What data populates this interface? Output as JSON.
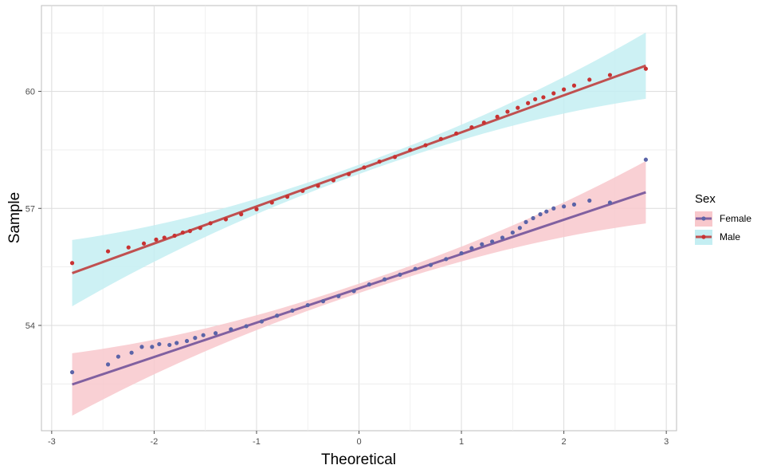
{
  "chart_data": {
    "type": "scatter",
    "subtype": "qq-plot",
    "title": "",
    "xlabel": "Theoretical",
    "ylabel": "Sample",
    "xlim": [
      -3.1,
      3.1
    ],
    "ylim": [
      51.3,
      62.2
    ],
    "x_ticks": [
      -3,
      -2,
      -1,
      0,
      1,
      2,
      3
    ],
    "y_ticks": [
      54,
      57,
      60
    ],
    "grid": true,
    "legend": {
      "title": "Sex",
      "position": "right",
      "entries": [
        "Female",
        "Male"
      ]
    },
    "series": [
      {
        "name": "Female",
        "point_color": "#5b64a8",
        "line_color": "#8060a0",
        "band_color": "#f8c8cc",
        "line": {
          "slope": 0.88,
          "intercept": 54.95,
          "x_range": [
            -2.8,
            2.8
          ]
        },
        "band_half_width": {
          "at_center": 0.12,
          "at_extreme": 0.8
        },
        "points": [
          [
            -2.8,
            52.8
          ],
          [
            -2.45,
            53.0
          ],
          [
            -2.35,
            53.2
          ],
          [
            -2.22,
            53.3
          ],
          [
            -2.12,
            53.45
          ],
          [
            -2.02,
            53.45
          ],
          [
            -1.95,
            53.52
          ],
          [
            -1.85,
            53.5
          ],
          [
            -1.78,
            53.55
          ],
          [
            -1.68,
            53.6
          ],
          [
            -1.6,
            53.68
          ],
          [
            -1.52,
            53.75
          ],
          [
            -1.4,
            53.8
          ],
          [
            -1.25,
            53.9
          ],
          [
            -1.1,
            53.98
          ],
          [
            -0.95,
            54.1
          ],
          [
            -0.8,
            54.25
          ],
          [
            -0.65,
            54.38
          ],
          [
            -0.5,
            54.52
          ],
          [
            -0.35,
            54.62
          ],
          [
            -0.2,
            54.75
          ],
          [
            -0.05,
            54.88
          ],
          [
            0.1,
            55.05
          ],
          [
            0.25,
            55.18
          ],
          [
            0.4,
            55.3
          ],
          [
            0.55,
            55.45
          ],
          [
            0.7,
            55.55
          ],
          [
            0.85,
            55.7
          ],
          [
            1.0,
            55.85
          ],
          [
            1.1,
            55.98
          ],
          [
            1.2,
            56.08
          ],
          [
            1.3,
            56.15
          ],
          [
            1.4,
            56.25
          ],
          [
            1.5,
            56.38
          ],
          [
            1.57,
            56.5
          ],
          [
            1.63,
            56.65
          ],
          [
            1.7,
            56.75
          ],
          [
            1.77,
            56.85
          ],
          [
            1.83,
            56.92
          ],
          [
            1.9,
            57.0
          ],
          [
            2.0,
            57.05
          ],
          [
            2.1,
            57.1
          ],
          [
            2.25,
            57.2
          ],
          [
            2.45,
            57.15
          ],
          [
            2.8,
            58.25
          ]
        ]
      },
      {
        "name": "Male",
        "point_color": "#c83232",
        "line_color": "#c05050",
        "band_color": "#c4eef2",
        "line": {
          "slope": 0.95,
          "intercept": 58.0,
          "x_range": [
            -2.8,
            2.8
          ]
        },
        "band_half_width": {
          "at_center": 0.12,
          "at_extreme": 0.85
        },
        "points": [
          [
            -2.8,
            55.6
          ],
          [
            -2.45,
            55.9
          ],
          [
            -2.25,
            56.0
          ],
          [
            -2.1,
            56.1
          ],
          [
            -1.98,
            56.2
          ],
          [
            -1.9,
            56.25
          ],
          [
            -1.8,
            56.3
          ],
          [
            -1.72,
            56.38
          ],
          [
            -1.65,
            56.42
          ],
          [
            -1.55,
            56.5
          ],
          [
            -1.45,
            56.62
          ],
          [
            -1.3,
            56.72
          ],
          [
            -1.15,
            56.85
          ],
          [
            -1.0,
            56.98
          ],
          [
            -0.85,
            57.15
          ],
          [
            -0.7,
            57.3
          ],
          [
            -0.55,
            57.45
          ],
          [
            -0.4,
            57.58
          ],
          [
            -0.25,
            57.72
          ],
          [
            -0.1,
            57.88
          ],
          [
            0.05,
            58.05
          ],
          [
            0.2,
            58.2
          ],
          [
            0.35,
            58.32
          ],
          [
            0.5,
            58.5
          ],
          [
            0.65,
            58.62
          ],
          [
            0.8,
            58.78
          ],
          [
            0.95,
            58.92
          ],
          [
            1.1,
            59.08
          ],
          [
            1.22,
            59.2
          ],
          [
            1.35,
            59.35
          ],
          [
            1.45,
            59.48
          ],
          [
            1.55,
            59.58
          ],
          [
            1.65,
            59.7
          ],
          [
            1.72,
            59.8
          ],
          [
            1.8,
            59.85
          ],
          [
            1.9,
            59.95
          ],
          [
            2.0,
            60.05
          ],
          [
            2.1,
            60.15
          ],
          [
            2.25,
            60.3
          ],
          [
            2.45,
            60.42
          ],
          [
            2.8,
            60.58
          ]
        ]
      }
    ]
  }
}
